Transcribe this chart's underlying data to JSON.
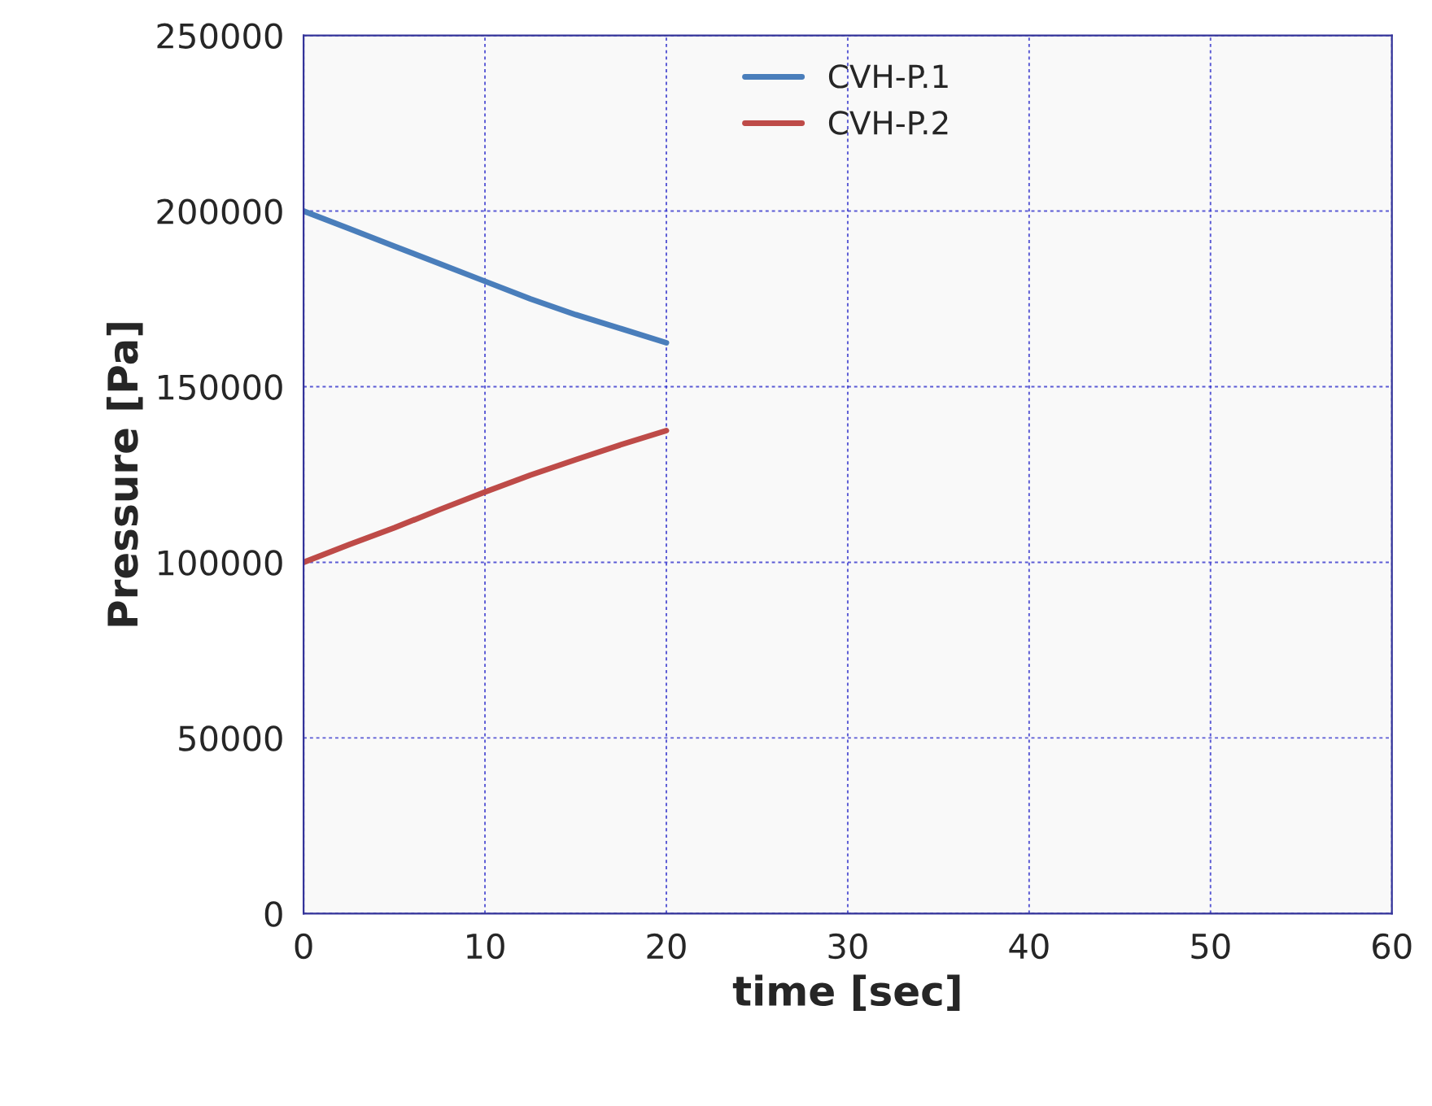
{
  "chart_data": {
    "type": "line",
    "xlabel": "time [sec]",
    "ylabel": "Pressure [Pa]",
    "x": [
      0,
      2.5,
      5,
      7.5,
      10,
      12.5,
      15,
      17.5,
      20
    ],
    "series": [
      {
        "name": "CVH-P.1",
        "color": "#4a7ebb",
        "values": [
          200000,
          195000,
          190000,
          185000,
          180000,
          175000,
          170500,
          166500,
          162500
        ]
      },
      {
        "name": "CVH-P.2",
        "color": "#be4b48",
        "values": [
          100000,
          105000,
          109800,
          115000,
          120000,
          124800,
          129200,
          133500,
          137500
        ]
      }
    ],
    "xlim": [
      0,
      60
    ],
    "xticks": [
      0,
      10,
      20,
      30,
      40,
      50,
      60
    ],
    "ylim": [
      0,
      250000
    ],
    "yticks": [
      0,
      50000,
      100000,
      150000,
      200000,
      250000
    ],
    "grid": true,
    "legend": "top",
    "marker": "none",
    "line_style": "solid"
  }
}
